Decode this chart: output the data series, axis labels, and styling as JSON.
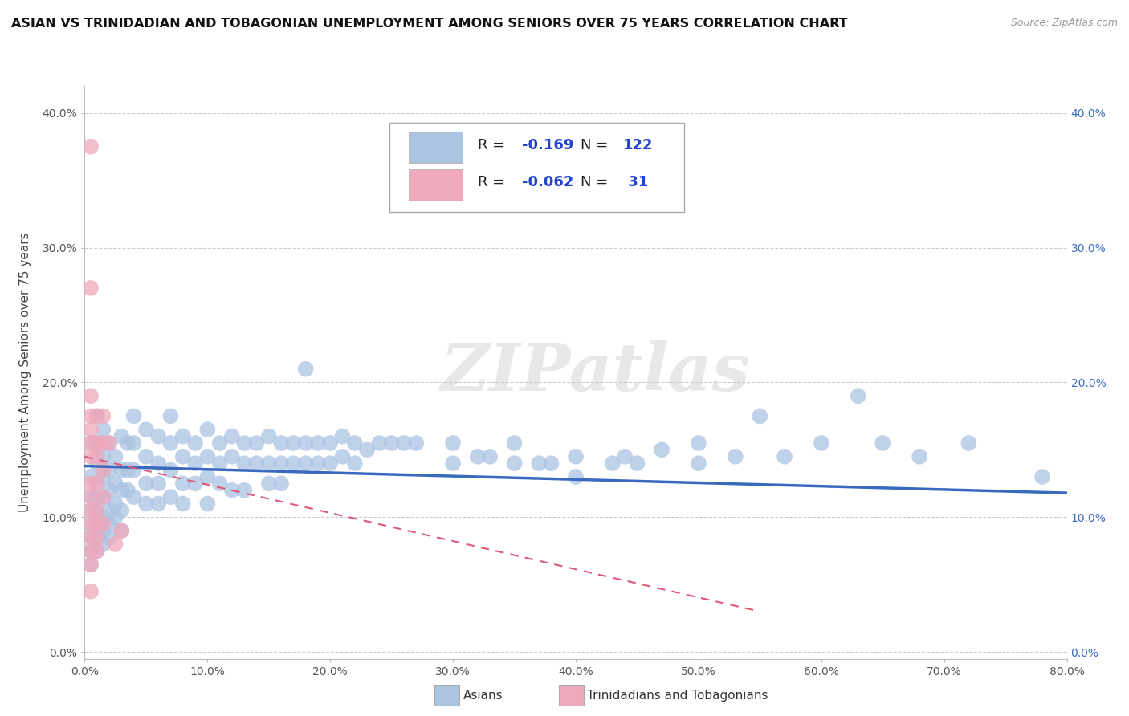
{
  "title": "ASIAN VS TRINIDADIAN AND TOBAGONIAN UNEMPLOYMENT AMONG SENIORS OVER 75 YEARS CORRELATION CHART",
  "source": "Source: ZipAtlas.com",
  "ylabel": "Unemployment Among Seniors over 75 years",
  "xlim": [
    0,
    0.8
  ],
  "ylim": [
    -0.005,
    0.42
  ],
  "asian_color": "#aac4e2",
  "trini_color": "#f0a8bc",
  "asian_line_color": "#3a6abf",
  "trini_line_color": "#e05878",
  "background_color": "#ffffff",
  "grid_color": "#cccccc",
  "watermark": "ZIPatlas",
  "r_color": "#2244cc",
  "asian_scatter": [
    [
      0.005,
      0.155
    ],
    [
      0.005,
      0.13
    ],
    [
      0.005,
      0.115
    ],
    [
      0.005,
      0.105
    ],
    [
      0.005,
      0.095
    ],
    [
      0.005,
      0.085
    ],
    [
      0.005,
      0.075
    ],
    [
      0.005,
      0.065
    ],
    [
      0.01,
      0.175
    ],
    [
      0.01,
      0.155
    ],
    [
      0.01,
      0.14
    ],
    [
      0.01,
      0.125
    ],
    [
      0.01,
      0.115
    ],
    [
      0.01,
      0.105
    ],
    [
      0.01,
      0.095
    ],
    [
      0.01,
      0.085
    ],
    [
      0.01,
      0.075
    ],
    [
      0.015,
      0.165
    ],
    [
      0.015,
      0.145
    ],
    [
      0.015,
      0.13
    ],
    [
      0.015,
      0.115
    ],
    [
      0.015,
      0.1
    ],
    [
      0.015,
      0.09
    ],
    [
      0.015,
      0.08
    ],
    [
      0.02,
      0.155
    ],
    [
      0.02,
      0.135
    ],
    [
      0.02,
      0.12
    ],
    [
      0.02,
      0.105
    ],
    [
      0.02,
      0.095
    ],
    [
      0.02,
      0.085
    ],
    [
      0.025,
      0.145
    ],
    [
      0.025,
      0.125
    ],
    [
      0.025,
      0.11
    ],
    [
      0.025,
      0.1
    ],
    [
      0.03,
      0.16
    ],
    [
      0.03,
      0.135
    ],
    [
      0.03,
      0.12
    ],
    [
      0.03,
      0.105
    ],
    [
      0.03,
      0.09
    ],
    [
      0.035,
      0.155
    ],
    [
      0.035,
      0.135
    ],
    [
      0.035,
      0.12
    ],
    [
      0.04,
      0.175
    ],
    [
      0.04,
      0.155
    ],
    [
      0.04,
      0.135
    ],
    [
      0.04,
      0.115
    ],
    [
      0.05,
      0.165
    ],
    [
      0.05,
      0.145
    ],
    [
      0.05,
      0.125
    ],
    [
      0.05,
      0.11
    ],
    [
      0.06,
      0.16
    ],
    [
      0.06,
      0.14
    ],
    [
      0.06,
      0.125
    ],
    [
      0.06,
      0.11
    ],
    [
      0.07,
      0.175
    ],
    [
      0.07,
      0.155
    ],
    [
      0.07,
      0.135
    ],
    [
      0.07,
      0.115
    ],
    [
      0.08,
      0.16
    ],
    [
      0.08,
      0.145
    ],
    [
      0.08,
      0.125
    ],
    [
      0.08,
      0.11
    ],
    [
      0.09,
      0.155
    ],
    [
      0.09,
      0.14
    ],
    [
      0.09,
      0.125
    ],
    [
      0.1,
      0.165
    ],
    [
      0.1,
      0.145
    ],
    [
      0.1,
      0.13
    ],
    [
      0.1,
      0.11
    ],
    [
      0.11,
      0.155
    ],
    [
      0.11,
      0.14
    ],
    [
      0.11,
      0.125
    ],
    [
      0.12,
      0.16
    ],
    [
      0.12,
      0.145
    ],
    [
      0.12,
      0.12
    ],
    [
      0.13,
      0.155
    ],
    [
      0.13,
      0.14
    ],
    [
      0.13,
      0.12
    ],
    [
      0.14,
      0.155
    ],
    [
      0.14,
      0.14
    ],
    [
      0.15,
      0.16
    ],
    [
      0.15,
      0.14
    ],
    [
      0.15,
      0.125
    ],
    [
      0.16,
      0.155
    ],
    [
      0.16,
      0.14
    ],
    [
      0.16,
      0.125
    ],
    [
      0.17,
      0.155
    ],
    [
      0.17,
      0.14
    ],
    [
      0.18,
      0.21
    ],
    [
      0.18,
      0.155
    ],
    [
      0.18,
      0.14
    ],
    [
      0.19,
      0.155
    ],
    [
      0.19,
      0.14
    ],
    [
      0.2,
      0.155
    ],
    [
      0.2,
      0.14
    ],
    [
      0.21,
      0.16
    ],
    [
      0.21,
      0.145
    ],
    [
      0.22,
      0.155
    ],
    [
      0.22,
      0.14
    ],
    [
      0.23,
      0.15
    ],
    [
      0.24,
      0.155
    ],
    [
      0.25,
      0.155
    ],
    [
      0.26,
      0.155
    ],
    [
      0.27,
      0.155
    ],
    [
      0.3,
      0.155
    ],
    [
      0.3,
      0.14
    ],
    [
      0.32,
      0.145
    ],
    [
      0.33,
      0.145
    ],
    [
      0.35,
      0.155
    ],
    [
      0.35,
      0.14
    ],
    [
      0.37,
      0.14
    ],
    [
      0.38,
      0.14
    ],
    [
      0.4,
      0.145
    ],
    [
      0.4,
      0.13
    ],
    [
      0.43,
      0.14
    ],
    [
      0.44,
      0.145
    ],
    [
      0.45,
      0.14
    ],
    [
      0.47,
      0.15
    ],
    [
      0.5,
      0.155
    ],
    [
      0.5,
      0.14
    ],
    [
      0.53,
      0.145
    ],
    [
      0.55,
      0.175
    ],
    [
      0.57,
      0.145
    ],
    [
      0.6,
      0.155
    ],
    [
      0.63,
      0.19
    ],
    [
      0.65,
      0.155
    ],
    [
      0.68,
      0.145
    ],
    [
      0.72,
      0.155
    ],
    [
      0.78,
      0.13
    ]
  ],
  "trini_scatter": [
    [
      0.005,
      0.375
    ],
    [
      0.005,
      0.27
    ],
    [
      0.005,
      0.19
    ],
    [
      0.005,
      0.175
    ],
    [
      0.005,
      0.165
    ],
    [
      0.005,
      0.155
    ],
    [
      0.005,
      0.145
    ],
    [
      0.005,
      0.125
    ],
    [
      0.005,
      0.115
    ],
    [
      0.005,
      0.105
    ],
    [
      0.005,
      0.095
    ],
    [
      0.005,
      0.085
    ],
    [
      0.005,
      0.075
    ],
    [
      0.005,
      0.065
    ],
    [
      0.005,
      0.045
    ],
    [
      0.01,
      0.175
    ],
    [
      0.01,
      0.155
    ],
    [
      0.01,
      0.145
    ],
    [
      0.01,
      0.125
    ],
    [
      0.01,
      0.105
    ],
    [
      0.01,
      0.095
    ],
    [
      0.01,
      0.085
    ],
    [
      0.01,
      0.075
    ],
    [
      0.015,
      0.175
    ],
    [
      0.015,
      0.155
    ],
    [
      0.015,
      0.135
    ],
    [
      0.015,
      0.115
    ],
    [
      0.015,
      0.095
    ],
    [
      0.02,
      0.155
    ],
    [
      0.025,
      0.08
    ],
    [
      0.03,
      0.09
    ]
  ],
  "asian_trend_x": [
    0.0,
    0.8
  ],
  "asian_trend_y": [
    0.138,
    0.118
  ],
  "trini_trend_x": [
    0.0,
    0.55
  ],
  "trini_trend_y": [
    0.145,
    0.03
  ]
}
